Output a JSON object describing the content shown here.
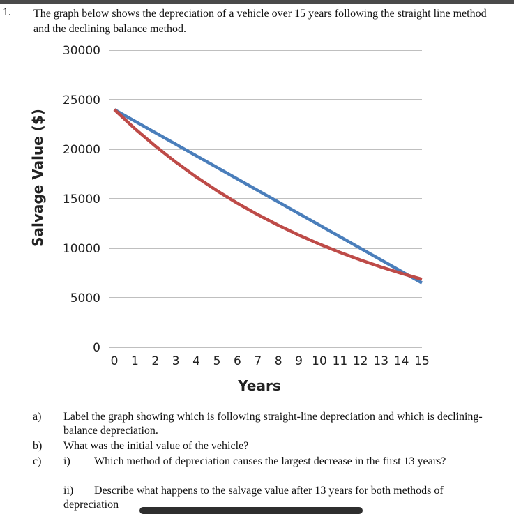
{
  "question": {
    "number": "1.",
    "text": "The graph below shows the depreciation of a vehicle over 15 years following the straight line method and the declining balance method."
  },
  "chart_data": {
    "type": "line",
    "xlabel": "Years",
    "ylabel": "Salvage Value ($)",
    "xlim": [
      0,
      15
    ],
    "ylim": [
      0,
      30000
    ],
    "x_ticks": [
      "0",
      "1",
      "2",
      "3",
      "4",
      "5",
      "6",
      "7",
      "8",
      "9",
      "10",
      "11",
      "12",
      "13",
      "14",
      "15"
    ],
    "y_ticks": [
      "0",
      "5000",
      "10000",
      "15000",
      "20000",
      "25000",
      "30000"
    ],
    "grid": true,
    "legend": "none",
    "series": [
      {
        "color": "#4a7ebb",
        "x": [
          0,
          15
        ],
        "y": [
          24000,
          6500
        ]
      },
      {
        "color": "#be4b48",
        "x": [
          0,
          1,
          2,
          3,
          4,
          5,
          6,
          7,
          8,
          9,
          10,
          11,
          12,
          13,
          14,
          15
        ],
        "y": [
          24000,
          22080,
          20314,
          18689,
          17193,
          15818,
          14552,
          13388,
          12317,
          11331,
          10425,
          9591,
          8824,
          8118,
          7468,
          6871
        ]
      }
    ]
  },
  "parts": [
    {
      "letter": "a)",
      "text": "Label the graph showing which is following straight-line depreciation and which is declining-balance depreciation."
    },
    {
      "letter": "b)",
      "text": "What was the initial value of the vehicle?"
    },
    {
      "letter": "c)",
      "roman": "i)",
      "text": "Which method of depreciation causes the largest decrease in the first 13 years?"
    },
    {
      "letter": "",
      "roman": "ii)",
      "text": "Describe what happens to the salvage value after 13 years for both methods of depreciation"
    }
  ]
}
